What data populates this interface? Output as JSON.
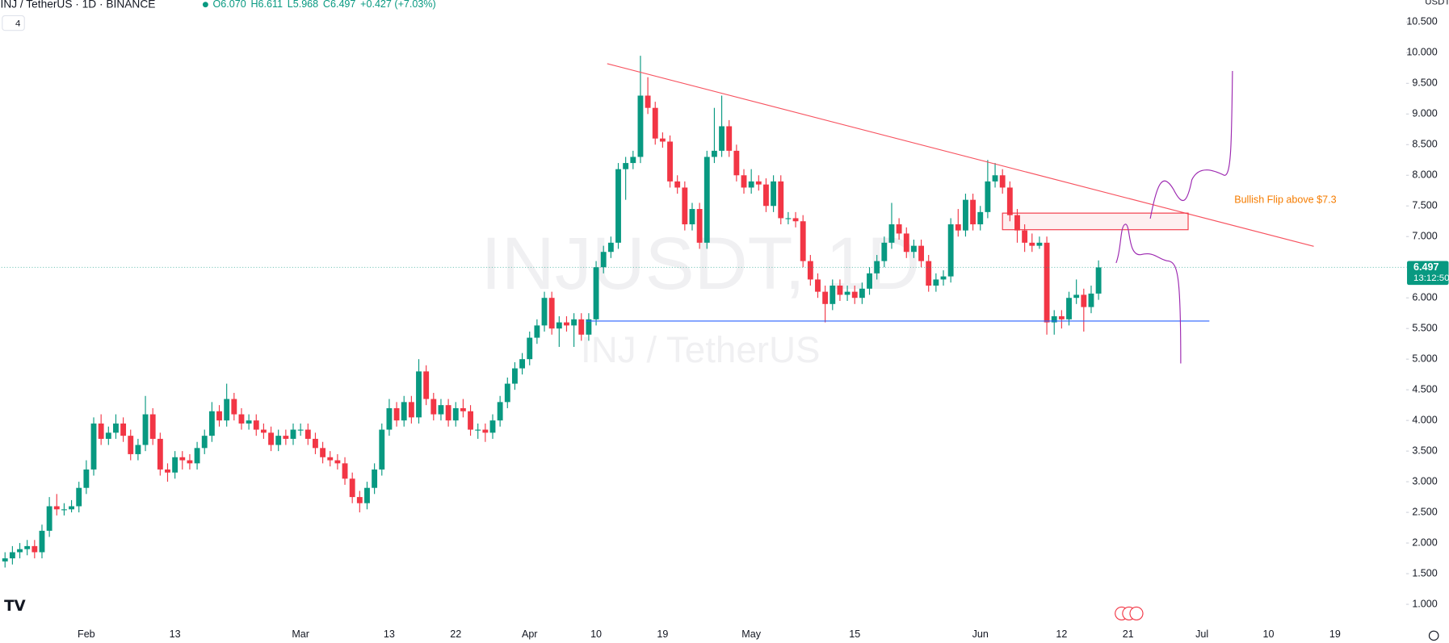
{
  "chart_data": {
    "type": "candlestick",
    "title": "INJ / TetherUS · 1D · BINANCE",
    "legend_values": [
      "O6.070",
      "H6.611",
      "L5.968",
      "C6.497",
      "+0.427 (+7.03%)"
    ],
    "indicator_count": "4",
    "currency": "USDT",
    "watermark": "INJUSDT, 1D",
    "watermark_subtitle": "INJ / TetherUS",
    "annotation": "Bullish Flip above $7.3",
    "last_price_label": "6.497",
    "countdown": "13:12:50",
    "up_color": "#089981",
    "down_color": "#f23645",
    "grid": false,
    "ylim": [
      0.7,
      10.86
    ],
    "yticks": [
      {
        "value": 1,
        "label": "1.000"
      },
      {
        "value": 1.5,
        "label": "1.500"
      },
      {
        "value": 2,
        "label": "2.000"
      },
      {
        "value": 2.5,
        "label": "2.500"
      },
      {
        "value": 3,
        "label": "3.000"
      },
      {
        "value": 3.5,
        "label": "3.500"
      },
      {
        "value": 4,
        "label": "4.000"
      },
      {
        "value": 4.5,
        "label": "4.500"
      },
      {
        "value": 5,
        "label": "5.000"
      },
      {
        "value": 5.5,
        "label": "5.500"
      },
      {
        "value": 6,
        "label": "6.000"
      },
      {
        "value": 6.5,
        "label": "6.500"
      },
      {
        "value": 7,
        "label": "7.000"
      },
      {
        "value": 7.5,
        "label": "7.500"
      },
      {
        "value": 8,
        "label": "8.000"
      },
      {
        "value": 8.5,
        "label": "8.500"
      },
      {
        "value": 9,
        "label": "9.000"
      },
      {
        "value": 9.5,
        "label": "9.500"
      },
      {
        "value": 10,
        "label": "10.000"
      },
      {
        "value": 10.5,
        "label": "10.500"
      }
    ],
    "categories": [
      null,
      null,
      null,
      null,
      null,
      null,
      null,
      null,
      null,
      null,
      null,
      "Feb",
      null,
      null,
      null,
      null,
      null,
      null,
      null,
      null,
      null,
      null,
      null,
      "13",
      null,
      null,
      null,
      null,
      null,
      null,
      null,
      null,
      null,
      null,
      null,
      null,
      null,
      null,
      null,
      null,
      "Mar",
      null,
      null,
      null,
      null,
      null,
      null,
      null,
      null,
      null,
      null,
      null,
      "13",
      null,
      null,
      null,
      null,
      null,
      null,
      null,
      null,
      "22",
      null,
      null,
      null,
      null,
      null,
      null,
      null,
      null,
      null,
      "Apr",
      null,
      null,
      null,
      null,
      null,
      null,
      null,
      null,
      "10",
      null,
      null,
      null,
      null,
      null,
      null,
      null,
      null,
      "19",
      null,
      null,
      null,
      null,
      null,
      null,
      null,
      null,
      null,
      null,
      null,
      "May",
      null,
      null,
      null,
      null,
      null,
      null,
      null,
      null,
      null,
      null,
      null,
      null,
      null,
      "15",
      null,
      null,
      null,
      null,
      null,
      null,
      null,
      null,
      null,
      null,
      null,
      null,
      null,
      null,
      null,
      null,
      "Jun",
      null,
      null,
      null,
      null,
      null,
      null,
      null,
      null,
      null,
      null,
      "12",
      null,
      null,
      null,
      null,
      null,
      null,
      null,
      null,
      "21",
      null,
      null,
      null,
      null,
      null,
      null,
      null,
      null,
      null,
      "Jul",
      null,
      null,
      null,
      null,
      null,
      null,
      null,
      null,
      "10",
      null,
      null,
      null,
      null,
      null,
      null,
      null,
      null,
      "19",
      null,
      null,
      null,
      null,
      null,
      null,
      null
    ],
    "ohlc": [
      [
        1.7,
        1.85,
        1.6,
        1.75
      ],
      [
        1.75,
        1.95,
        1.65,
        1.85
      ],
      [
        1.85,
        2.0,
        1.75,
        1.9
      ],
      [
        1.9,
        2.05,
        1.8,
        1.95
      ],
      [
        1.95,
        2.05,
        1.75,
        1.85
      ],
      [
        1.85,
        2.3,
        1.75,
        2.2
      ],
      [
        2.2,
        2.75,
        2.1,
        2.6
      ],
      [
        2.6,
        2.8,
        2.45,
        2.55
      ],
      [
        2.55,
        2.65,
        2.45,
        2.55
      ],
      [
        2.55,
        2.7,
        2.5,
        2.6
      ],
      [
        2.6,
        3.0,
        2.5,
        2.9
      ],
      [
        2.9,
        3.35,
        2.8,
        3.2
      ],
      [
        3.2,
        4.05,
        3.1,
        3.95
      ],
      [
        3.95,
        4.1,
        3.6,
        3.7
      ],
      [
        3.7,
        3.9,
        3.6,
        3.8
      ],
      [
        3.8,
        4.1,
        3.7,
        3.95
      ],
      [
        3.95,
        4.05,
        3.65,
        3.75
      ],
      [
        3.75,
        3.85,
        3.35,
        3.45
      ],
      [
        3.45,
        3.7,
        3.35,
        3.6
      ],
      [
        3.6,
        4.4,
        3.5,
        4.1
      ],
      [
        4.1,
        4.2,
        3.6,
        3.7
      ],
      [
        3.7,
        3.8,
        3.1,
        3.2
      ],
      [
        3.2,
        3.3,
        3.0,
        3.15
      ],
      [
        3.15,
        3.5,
        3.05,
        3.4
      ],
      [
        3.4,
        3.5,
        3.2,
        3.35
      ],
      [
        3.35,
        3.45,
        3.2,
        3.3
      ],
      [
        3.3,
        3.65,
        3.2,
        3.55
      ],
      [
        3.55,
        3.85,
        3.45,
        3.75
      ],
      [
        3.75,
        4.3,
        3.65,
        4.15
      ],
      [
        4.15,
        4.25,
        3.9,
        4.0
      ],
      [
        4.0,
        4.6,
        3.9,
        4.35
      ],
      [
        4.35,
        4.45,
        4.0,
        4.1
      ],
      [
        4.1,
        4.2,
        3.85,
        3.95
      ],
      [
        3.95,
        4.1,
        3.85,
        4.0
      ],
      [
        4.0,
        4.1,
        3.75,
        3.85
      ],
      [
        3.85,
        3.95,
        3.7,
        3.8
      ],
      [
        3.8,
        3.9,
        3.5,
        3.6
      ],
      [
        3.6,
        3.85,
        3.5,
        3.75
      ],
      [
        3.75,
        3.85,
        3.6,
        3.7
      ],
      [
        3.7,
        3.95,
        3.6,
        3.85
      ],
      [
        3.85,
        3.95,
        3.75,
        3.85
      ],
      [
        3.85,
        3.95,
        3.6,
        3.7
      ],
      [
        3.7,
        3.8,
        3.45,
        3.55
      ],
      [
        3.55,
        3.65,
        3.3,
        3.4
      ],
      [
        3.4,
        3.5,
        3.25,
        3.35
      ],
      [
        3.35,
        3.45,
        3.2,
        3.3
      ],
      [
        3.3,
        3.4,
        2.95,
        3.05
      ],
      [
        3.05,
        3.15,
        2.65,
        2.75
      ],
      [
        2.75,
        2.85,
        2.5,
        2.65
      ],
      [
        2.65,
        3.0,
        2.55,
        2.9
      ],
      [
        2.9,
        3.3,
        2.8,
        3.2
      ],
      [
        3.2,
        3.95,
        3.1,
        3.85
      ],
      [
        3.85,
        4.35,
        3.75,
        4.2
      ],
      [
        4.2,
        4.3,
        3.9,
        4.0
      ],
      [
        4.0,
        4.4,
        3.9,
        4.3
      ],
      [
        4.3,
        4.4,
        3.95,
        4.05
      ],
      [
        4.05,
        5.0,
        3.95,
        4.8
      ],
      [
        4.8,
        4.9,
        4.25,
        4.35
      ],
      [
        4.35,
        4.45,
        4.0,
        4.1
      ],
      [
        4.1,
        4.35,
        4.0,
        4.25
      ],
      [
        4.25,
        4.35,
        3.9,
        4.0
      ],
      [
        4.0,
        4.3,
        3.9,
        4.2
      ],
      [
        4.2,
        4.35,
        4.05,
        4.15
      ],
      [
        4.15,
        4.25,
        3.75,
        3.85
      ],
      [
        3.85,
        3.95,
        3.7,
        3.85
      ],
      [
        3.85,
        3.95,
        3.65,
        3.8
      ],
      [
        3.8,
        4.1,
        3.7,
        4.0
      ],
      [
        4.0,
        4.4,
        3.9,
        4.3
      ],
      [
        4.3,
        4.7,
        4.2,
        4.6
      ],
      [
        4.6,
        4.95,
        4.5,
        4.85
      ],
      [
        4.85,
        5.1,
        4.75,
        5.0
      ],
      [
        5.0,
        5.45,
        4.9,
        5.35
      ],
      [
        5.35,
        5.65,
        5.25,
        5.55
      ],
      [
        5.55,
        6.1,
        5.45,
        6.0
      ],
      [
        6.0,
        6.1,
        5.4,
        5.5
      ],
      [
        5.5,
        5.7,
        5.2,
        5.6
      ],
      [
        5.6,
        5.7,
        5.45,
        5.55
      ],
      [
        5.55,
        5.75,
        5.2,
        5.65
      ],
      [
        5.65,
        5.75,
        5.3,
        5.4
      ],
      [
        5.4,
        5.75,
        5.3,
        5.65
      ],
      [
        5.65,
        6.6,
        5.55,
        6.5
      ],
      [
        6.5,
        6.85,
        6.4,
        6.75
      ],
      [
        6.75,
        7.0,
        6.65,
        6.9
      ],
      [
        6.9,
        8.2,
        6.8,
        8.1
      ],
      [
        8.1,
        8.3,
        7.6,
        8.2
      ],
      [
        8.2,
        8.4,
        8.1,
        8.3
      ],
      [
        8.3,
        9.95,
        8.2,
        9.3
      ],
      [
        9.3,
        9.6,
        9.0,
        9.1
      ],
      [
        9.1,
        9.2,
        8.5,
        8.6
      ],
      [
        8.6,
        8.7,
        8.45,
        8.55
      ],
      [
        8.55,
        8.65,
        7.8,
        7.9
      ],
      [
        7.9,
        8.0,
        7.7,
        7.8
      ],
      [
        7.8,
        7.9,
        7.1,
        7.2
      ],
      [
        7.2,
        7.55,
        7.1,
        7.45
      ],
      [
        7.45,
        7.55,
        6.8,
        6.9
      ],
      [
        6.9,
        8.4,
        6.8,
        8.3
      ],
      [
        8.3,
        9.1,
        8.2,
        8.4
      ],
      [
        8.4,
        9.3,
        8.3,
        8.8
      ],
      [
        8.8,
        8.9,
        8.3,
        8.4
      ],
      [
        8.4,
        8.5,
        7.9,
        8.0
      ],
      [
        8.0,
        8.1,
        7.7,
        7.8
      ],
      [
        7.8,
        8.1,
        7.7,
        7.9
      ],
      [
        7.9,
        8.0,
        7.75,
        7.85
      ],
      [
        7.85,
        7.95,
        7.4,
        7.5
      ],
      [
        7.5,
        8.0,
        7.4,
        7.9
      ],
      [
        7.9,
        8.0,
        7.2,
        7.3
      ],
      [
        7.3,
        7.4,
        7.2,
        7.3
      ],
      [
        7.3,
        7.4,
        7.15,
        7.25
      ],
      [
        7.25,
        7.35,
        6.5,
        6.6
      ],
      [
        6.6,
        6.7,
        6.2,
        6.3
      ],
      [
        6.3,
        6.4,
        6.0,
        6.1
      ],
      [
        6.1,
        6.2,
        5.6,
        5.9
      ],
      [
        5.9,
        6.3,
        5.8,
        6.2
      ],
      [
        6.2,
        6.3,
        5.95,
        6.05
      ],
      [
        6.05,
        6.2,
        5.95,
        6.1
      ],
      [
        6.1,
        6.2,
        5.9,
        6.0
      ],
      [
        6.0,
        6.25,
        5.9,
        6.15
      ],
      [
        6.15,
        6.5,
        6.05,
        6.4
      ],
      [
        6.4,
        6.7,
        6.3,
        6.6
      ],
      [
        6.6,
        7.0,
        6.5,
        6.9
      ],
      [
        6.9,
        7.55,
        6.8,
        7.2
      ],
      [
        7.2,
        7.3,
        6.95,
        7.05
      ],
      [
        7.05,
        7.15,
        6.65,
        6.75
      ],
      [
        6.75,
        6.95,
        6.65,
        6.85
      ],
      [
        6.85,
        6.95,
        6.5,
        6.6
      ],
      [
        6.6,
        6.7,
        6.1,
        6.2
      ],
      [
        6.2,
        6.4,
        6.1,
        6.3
      ],
      [
        6.3,
        6.45,
        6.2,
        6.35
      ],
      [
        6.35,
        7.3,
        6.25,
        7.2
      ],
      [
        7.2,
        7.45,
        7.0,
        7.1
      ],
      [
        7.1,
        7.7,
        7.0,
        7.6
      ],
      [
        7.6,
        7.7,
        7.1,
        7.2
      ],
      [
        7.2,
        7.5,
        7.1,
        7.4
      ],
      [
        7.4,
        8.25,
        7.3,
        7.9
      ],
      [
        7.9,
        8.2,
        7.8,
        8.0
      ],
      [
        8.0,
        8.1,
        7.7,
        7.8
      ],
      [
        7.8,
        7.9,
        7.25,
        7.35
      ],
      [
        7.35,
        7.45,
        6.9,
        7.1
      ],
      [
        7.1,
        7.2,
        6.75,
        6.9
      ],
      [
        6.9,
        7.05,
        6.75,
        6.85
      ],
      [
        6.85,
        7.0,
        6.8,
        6.9
      ],
      [
        6.9,
        7.0,
        5.4,
        5.6
      ],
      [
        5.6,
        5.8,
        5.4,
        5.7
      ],
      [
        5.7,
        5.8,
        5.5,
        5.65
      ],
      [
        5.65,
        6.1,
        5.55,
        6.0
      ],
      [
        6.0,
        6.3,
        5.9,
        6.05
      ],
      [
        6.05,
        6.15,
        5.45,
        5.85
      ],
      [
        5.85,
        6.2,
        5.75,
        6.07
      ],
      [
        6.07,
        6.611,
        5.968,
        6.497
      ],
      null,
      null,
      null,
      null,
      null,
      null,
      null,
      null,
      null,
      null,
      null,
      null,
      null,
      null,
      null,
      null,
      null,
      null,
      null,
      null,
      null,
      null,
      null,
      null,
      null,
      null,
      null,
      null,
      null,
      null,
      null,
      null,
      null,
      null,
      null,
      null,
      null,
      null,
      null
    ]
  }
}
